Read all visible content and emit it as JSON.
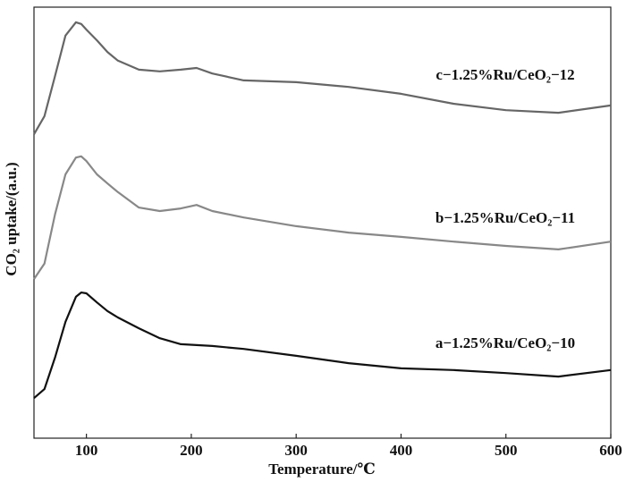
{
  "chart_data": {
    "type": "line",
    "x_label": "Temperature/℃",
    "y_label": "CO₂ uptake/(a.u.)",
    "x": [
      50,
      60,
      70,
      80,
      90,
      95,
      100,
      110,
      120,
      130,
      150,
      170,
      190,
      205,
      220,
      250,
      300,
      350,
      400,
      450,
      500,
      550,
      600
    ],
    "series": [
      {
        "name": "a−1.25%Ru/CeO₂−10",
        "color": "#111111",
        "values": [
          9.3,
          11.4,
          18.7,
          27.0,
          32.8,
          33.8,
          33.6,
          31.5,
          29.5,
          28.0,
          25.5,
          23.2,
          21.8,
          21.6,
          21.4,
          20.7,
          19.1,
          17.4,
          16.2,
          15.8,
          15.1,
          14.3,
          15.8
        ]
      },
      {
        "name": "b−1.25%Ru/CeO₂−11",
        "color": "#888888",
        "values": [
          36.9,
          40.5,
          51.9,
          61.2,
          65.1,
          65.4,
          64.3,
          61.2,
          59.1,
          57.1,
          53.5,
          52.7,
          53.3,
          54.1,
          52.7,
          51.2,
          49.2,
          47.7,
          46.7,
          45.6,
          44.6,
          43.8,
          45.6
        ]
      },
      {
        "name": "c−1.25%Ru/CeO₂−12",
        "color": "#666666",
        "values": [
          70.5,
          74.7,
          84.0,
          93.4,
          96.5,
          96.1,
          94.8,
          92.3,
          89.6,
          87.6,
          85.5,
          85.1,
          85.5,
          85.9,
          84.6,
          83.0,
          82.6,
          81.5,
          79.9,
          77.6,
          76.1,
          75.5,
          77.2
        ]
      }
    ],
    "xlim": [
      50,
      600
    ],
    "ylim": [
      0,
      100
    ],
    "xticks": [
      100,
      200,
      300,
      400,
      500,
      600
    ]
  }
}
